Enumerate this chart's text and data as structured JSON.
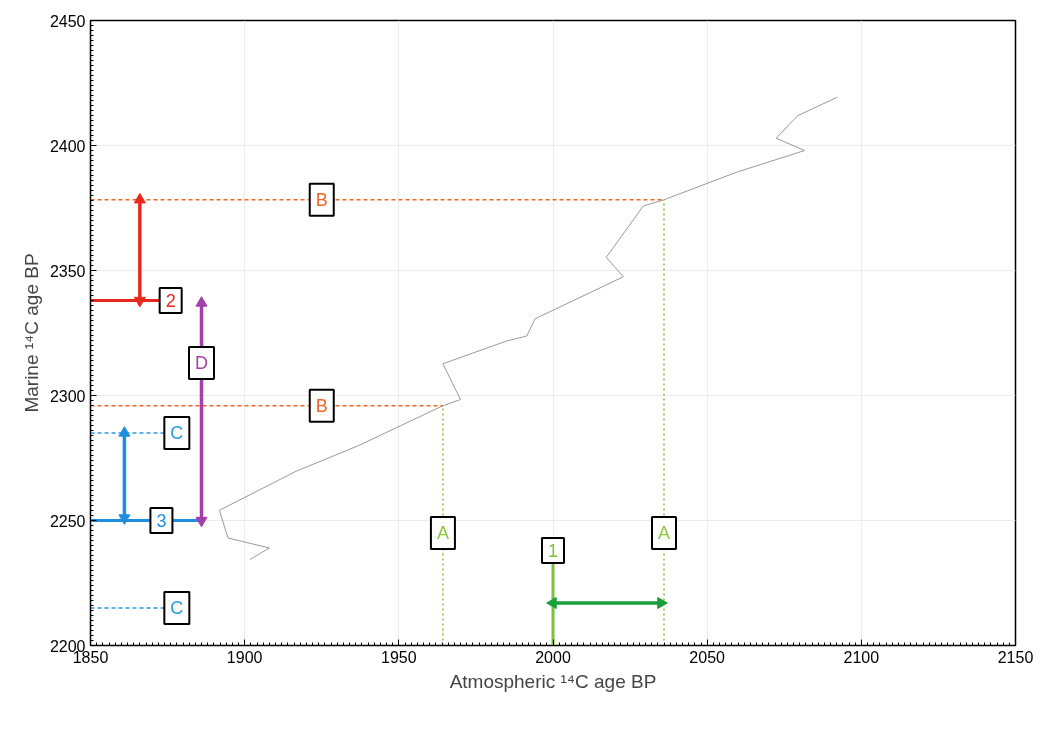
{
  "chart_data": {
    "type": "line",
    "xlabel": "Atmospheric ¹⁴C age BP",
    "ylabel": "Marine ¹⁴C age BP",
    "xlim": [
      1850,
      2150
    ],
    "xticks": [
      1850,
      1900,
      1950,
      2000,
      2050,
      2100,
      2150
    ],
    "ylim": [
      2200,
      2450
    ],
    "yticks": [
      2200,
      2250,
      2300,
      2350,
      2400,
      2450
    ],
    "grid": true,
    "series": [
      {
        "color": "#9a9a9a",
        "line_style": "solid",
        "x": [
          1901.7,
          1908,
          1894.6,
          1891.8,
          1916.7,
          1937,
          1950.7,
          1964.3,
          1970,
          1964.3,
          1984.7,
          1991.5,
          1994.2,
          2022.8,
          2017.3,
          2029.3,
          2036,
          2059.5,
          2081.6,
          2072.4,
          2079.3,
          2092.2
        ],
        "values": [
          2234.4,
          2239,
          2243,
          2254.1,
          2269.7,
          2280,
          2288,
          2295.9,
          2298.4,
          2312.7,
          2321.7,
          2323.8,
          2330.7,
          2347.5,
          2355.3,
          2375.8,
          2378.3,
          2389.3,
          2398,
          2402.9,
          2411.9,
          2419.3
        ]
      },
      {
        "color": "#f26522",
        "line_style": "dashed",
        "x": [
          1850,
          2036
        ],
        "values": [
          2378.3,
          2378.3
        ]
      },
      {
        "color": "#f26522",
        "line_style": "dashed",
        "x": [
          1850,
          1964.3
        ],
        "values": [
          2295.9,
          2295.9
        ]
      },
      {
        "color": "#8dc63f",
        "line_style": "dotted",
        "x": [
          1964.3,
          1964.3
        ],
        "values": [
          2200,
          2295.9
        ]
      },
      {
        "color": "#8dc63f",
        "line_style": "dotted",
        "x": [
          2036,
          2036
        ],
        "values": [
          2200,
          2378.3
        ]
      },
      {
        "color": "#2b9be0",
        "line_style": "dashed",
        "x": [
          1850,
          1878
        ],
        "values": [
          2285,
          2285
        ]
      },
      {
        "color": "#2b9be0",
        "line_style": "dashed",
        "x": [
          1850,
          1878
        ],
        "values": [
          2215,
          2215
        ]
      },
      {
        "color": "#e8281e",
        "line_style": "solid",
        "x": [
          1850,
          1876
        ],
        "values": [
          2338,
          2338
        ]
      },
      {
        "color": "#1e8fe0",
        "line_style": "solid",
        "x": [
          1850,
          1885
        ],
        "values": [
          2250,
          2250
        ]
      },
      {
        "color": "#7ac143",
        "line_style": "solid",
        "x": [
          2000,
          2000
        ],
        "values": [
          2200,
          2238
        ]
      },
      {
        "color": "#a43ea8",
        "line_style": "solid",
        "marker": "triangle",
        "x": [
          1886,
          1886
        ],
        "values": [
          2250,
          2337
        ]
      },
      {
        "color": "#e8281e",
        "line_style": "solid",
        "marker": "triangle",
        "x": [
          1866,
          1866
        ],
        "values": [
          2378.3,
          2338
        ]
      },
      {
        "color": "#1e8fe0",
        "line_style": "solid",
        "marker": "triangle",
        "x": [
          1861,
          1861
        ],
        "values": [
          2285,
          2251
        ]
      },
      {
        "color": "#1a9e3a",
        "line_style": "solid",
        "marker": "triangle",
        "x": [
          2000,
          2035
        ],
        "values": [
          2217,
          2217
        ]
      }
    ],
    "annotations": [
      {
        "text": "B",
        "x": 1925,
        "y": 2378.3
      },
      {
        "text": "2",
        "x": 1876,
        "y": 2338
      },
      {
        "text": "D",
        "x": 1886,
        "y": 2313
      },
      {
        "text": "B",
        "x": 1925,
        "y": 2295.9
      },
      {
        "text": "C",
        "x": 1878,
        "y": 2285
      },
      {
        "text": "3",
        "x": 1873,
        "y": 2250
      },
      {
        "text": "A",
        "x": 1964.3,
        "y": 2245
      },
      {
        "text": "A",
        "x": 2036,
        "y": 2245
      },
      {
        "text": "1",
        "x": 2000,
        "y": 2238
      },
      {
        "text": "C",
        "x": 1878,
        "y": 2215
      }
    ]
  }
}
